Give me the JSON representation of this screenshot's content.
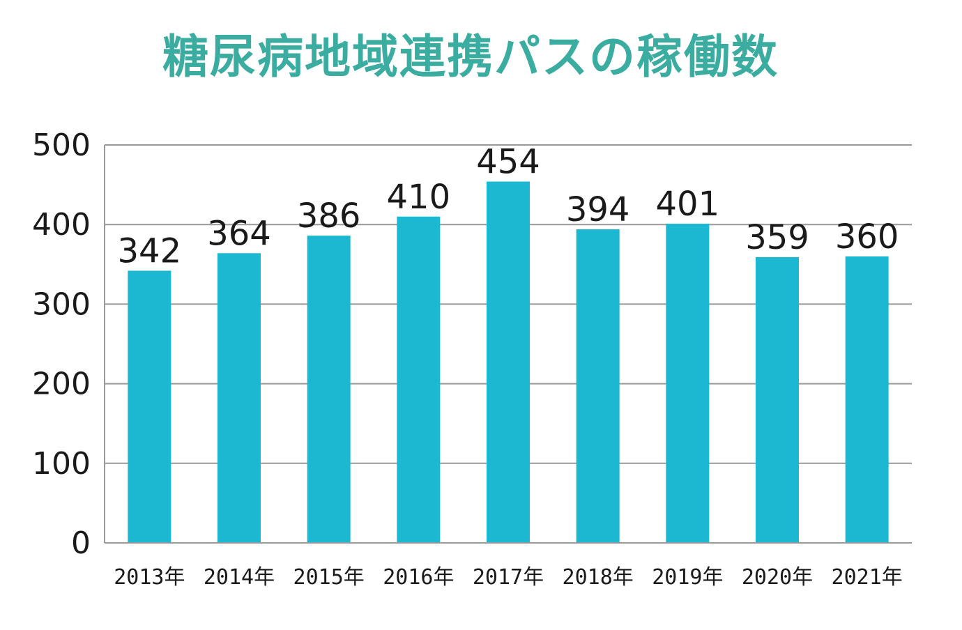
{
  "chart_data": {
    "type": "bar",
    "title": "糖尿病地域連携パスの稼働数",
    "categories": [
      "2013年",
      "2014年",
      "2015年",
      "2016年",
      "2017年",
      "2018年",
      "2019年",
      "2020年",
      "2021年"
    ],
    "values": [
      342,
      364,
      386,
      410,
      454,
      394,
      401,
      359,
      360
    ],
    "ylim": [
      0,
      500
    ],
    "yticks": [
      0,
      100,
      200,
      300,
      400,
      500
    ],
    "grid": true,
    "data_labels": true,
    "colors": {
      "title": "#3aada0",
      "bar": "#1cb8d1",
      "grid": "#999999",
      "text": "#1a1a1a"
    }
  }
}
